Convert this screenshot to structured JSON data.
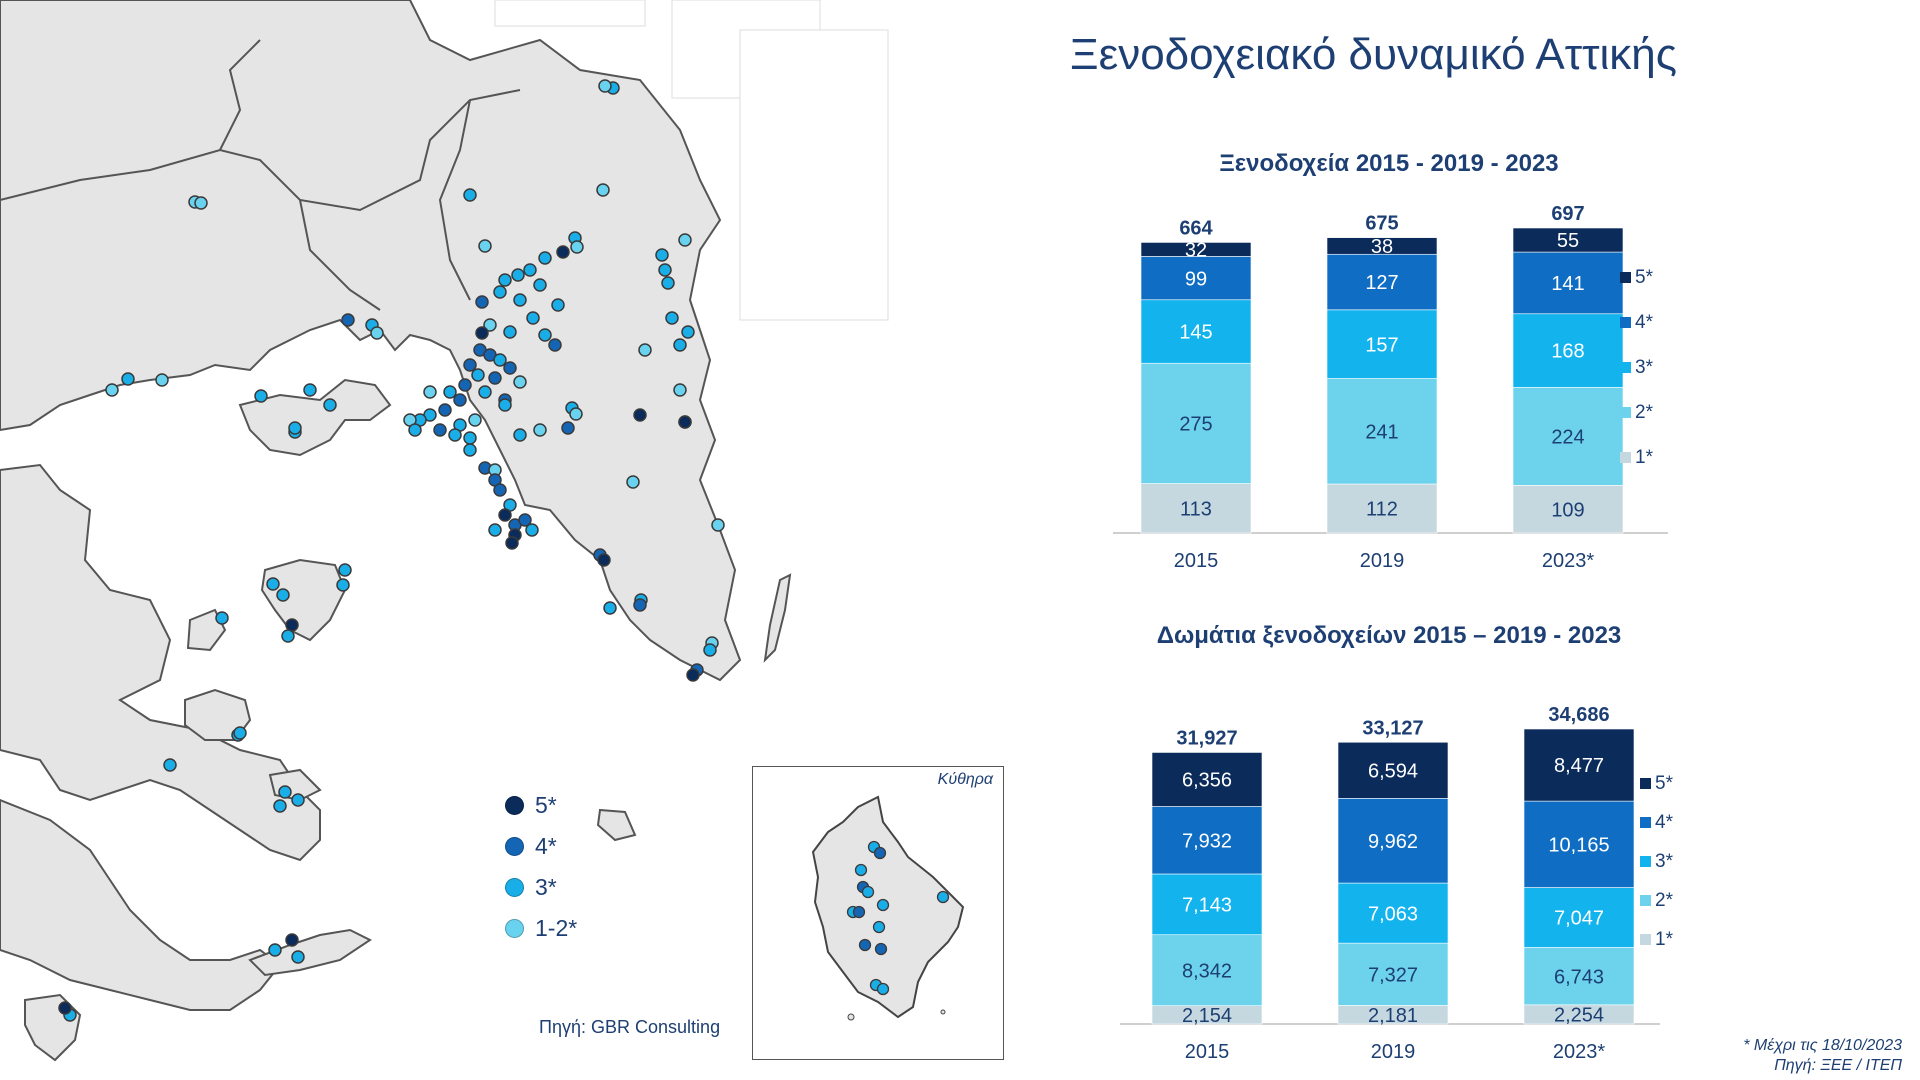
{
  "page": {
    "title": "Ξενοδοχειακό δυναμικό Αττικής",
    "footnote": "* Μέχρι τις 18/10/2023",
    "source": "Πηγή: ΞΕΕ / ΙΤΕΠ"
  },
  "map": {
    "source": "Πηγή: GBR Consulting",
    "inset_label": "Κύθηρα",
    "legend": [
      {
        "label": "5*",
        "color": "#0b2b5b"
      },
      {
        "label": "4*",
        "color": "#1565b5"
      },
      {
        "label": "3*",
        "color": "#1aaee8"
      },
      {
        "label": "1-2*",
        "color": "#69d2ee"
      }
    ]
  },
  "chart_data": [
    {
      "type": "bar",
      "stacked": true,
      "title": "Ξενοδοχεία 2015 - 2019 - 2023",
      "categories": [
        "2015",
        "2019",
        "2023*"
      ],
      "totals": [
        "664",
        "675",
        "697"
      ],
      "series": [
        {
          "name": "1*",
          "color": "#c5d8e0",
          "text_color": "#1d3f73",
          "values": [
            113,
            112,
            109
          ],
          "labels": [
            "113",
            "112",
            "109"
          ]
        },
        {
          "name": "2*",
          "color": "#6dd3ec",
          "text_color": "#1d3f73",
          "values": [
            275,
            241,
            224
          ],
          "labels": [
            "275",
            "241",
            "224"
          ]
        },
        {
          "name": "3*",
          "color": "#13b4ee",
          "text_color": "#ffffff",
          "values": [
            145,
            157,
            168
          ],
          "labels": [
            "145",
            "157",
            "168"
          ]
        },
        {
          "name": "4*",
          "color": "#0f6dc3",
          "text_color": "#ffffff",
          "values": [
            99,
            127,
            141
          ],
          "labels": [
            "99",
            "127",
            "141"
          ]
        },
        {
          "name": "5*",
          "color": "#0b2b5b",
          "text_color": "#ffffff",
          "values": [
            32,
            38,
            55
          ],
          "labels": [
            "32",
            "38",
            "55"
          ]
        }
      ],
      "legend_position": "right",
      "grid": false
    },
    {
      "type": "bar",
      "stacked": true,
      "title": "Δωμάτια ξενοδοχείων 2015 – 2019 - 2023",
      "categories": [
        "2015",
        "2019",
        "2023*"
      ],
      "totals": [
        "31,927",
        "33,127",
        "34,686"
      ],
      "series": [
        {
          "name": "1*",
          "color": "#c5d8e0",
          "text_color": "#1d3f73",
          "values": [
            2154,
            2181,
            2254
          ],
          "labels": [
            "2,154",
            "2,181",
            "2,254"
          ]
        },
        {
          "name": "2*",
          "color": "#6dd3ec",
          "text_color": "#1d3f73",
          "values": [
            8342,
            7327,
            6743
          ],
          "labels": [
            "8,342",
            "7,327",
            "6,743"
          ]
        },
        {
          "name": "3*",
          "color": "#13b4ee",
          "text_color": "#ffffff",
          "values": [
            7143,
            7063,
            7047
          ],
          "labels": [
            "7,143",
            "7,063",
            "7,047"
          ]
        },
        {
          "name": "4*",
          "color": "#0f6dc3",
          "text_color": "#ffffff",
          "values": [
            7932,
            9962,
            10165
          ],
          "labels": [
            "7,932",
            "9,962",
            "10,165"
          ]
        },
        {
          "name": "5*",
          "color": "#0b2b5b",
          "text_color": "#ffffff",
          "values": [
            6356,
            6594,
            8477
          ],
          "labels": [
            "6,356",
            "6,594",
            "8,477"
          ]
        }
      ],
      "legend_position": "right",
      "grid": false
    }
  ]
}
